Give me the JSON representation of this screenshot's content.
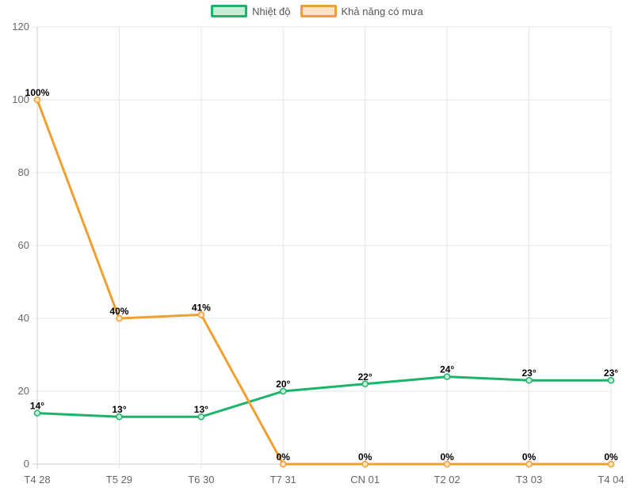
{
  "chart_data": {
    "type": "line",
    "categories": [
      "T4 28",
      "T5 29",
      "T6 30",
      "T7 31",
      "CN 01",
      "T2 02",
      "T3 03",
      "T4 04"
    ],
    "ylim": [
      0,
      120
    ],
    "yticks": [
      0,
      20,
      40,
      60,
      80,
      100,
      120
    ],
    "grid": true,
    "legend_position": "top-center",
    "series": [
      {
        "name": "Nhiệt độ",
        "color": "#1db36b",
        "fill": "#c7efd8",
        "values": [
          14,
          13,
          13,
          20,
          22,
          24,
          23,
          23
        ],
        "labels": [
          "14°",
          "13°",
          "13°",
          "20°",
          "22°",
          "24°",
          "23°",
          "23°"
        ]
      },
      {
        "name": "Khả năng có mưa",
        "color": "#f0a030",
        "fill": "#fde4c2",
        "values": [
          100,
          40,
          41,
          0,
          0,
          0,
          0,
          0
        ],
        "labels": [
          "100%",
          "40%",
          "41%",
          "0%",
          "0%",
          "0%",
          "0%",
          "0%"
        ]
      }
    ]
  }
}
